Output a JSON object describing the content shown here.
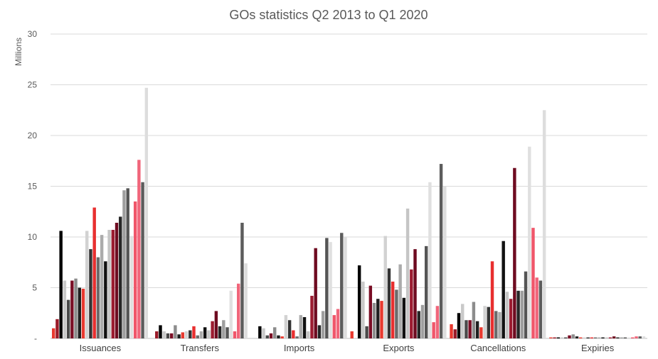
{
  "chart_data": {
    "type": "bar",
    "title": "GOs statistics Q2 2013 to Q1 2020",
    "ylabel": "Millions",
    "ylim": [
      0,
      30
    ],
    "yticks": [
      "-",
      "5",
      "10",
      "15",
      "20",
      "25",
      "30"
    ],
    "grid": true,
    "categories": [
      "Issuances",
      "Transfers",
      "Imports",
      "Exports",
      "Cancellations",
      "Expiries"
    ],
    "series_colors": [
      "#e8392f",
      "#9a1a28",
      "#000000",
      "#c9c9c9",
      "#4a4a4a",
      "#7a0e25",
      "#8c8c8c",
      "#1f1f1f",
      "#e8392f",
      "#d2d2d2",
      "#333333",
      "#e82f2f",
      "#6b6b6b",
      "#ababab",
      "#111111",
      "#c5c5c5",
      "#9b1b30",
      "#6e0b20",
      "#262626",
      "#9e9e9e",
      "#555555",
      "#e0e0e0",
      "#f0566a",
      "#f0657a",
      "#5c5c5c",
      "#dddddd"
    ],
    "series": [
      {
        "values": [
          1.0,
          0.0,
          0.0,
          0.7,
          1.4,
          0.1
        ]
      },
      {
        "values": [
          1.9,
          0.7,
          0.0,
          0.0,
          0.9,
          0.1
        ]
      },
      {
        "values": [
          10.6,
          1.3,
          1.2,
          7.2,
          2.5,
          0.1
        ]
      },
      {
        "values": [
          5.7,
          0.7,
          1.0,
          5.6,
          3.4,
          0.1
        ]
      },
      {
        "values": [
          3.8,
          0.5,
          0.3,
          1.2,
          1.8,
          0.1
        ]
      },
      {
        "values": [
          5.7,
          0.5,
          0.5,
          5.2,
          1.8,
          0.3
        ]
      },
      {
        "values": [
          5.9,
          1.3,
          1.1,
          3.5,
          3.6,
          0.4
        ]
      },
      {
        "values": [
          5.0,
          0.4,
          0.3,
          3.9,
          1.7,
          0.2
        ]
      },
      {
        "values": [
          4.9,
          0.6,
          0.2,
          3.7,
          1.1,
          0.1
        ]
      },
      {
        "values": [
          10.6,
          0.7,
          2.3,
          10.1,
          3.2,
          0.1
        ]
      },
      {
        "values": [
          8.8,
          0.8,
          1.8,
          6.9,
          3.1,
          0.1
        ]
      },
      {
        "values": [
          12.9,
          1.2,
          0.8,
          5.6,
          7.6,
          0.1
        ]
      },
      {
        "values": [
          8.0,
          0.3,
          0.2,
          4.8,
          2.7,
          0.1
        ]
      },
      {
        "values": [
          10.2,
          0.7,
          2.3,
          7.3,
          2.6,
          0.1
        ]
      },
      {
        "values": [
          7.6,
          1.1,
          2.1,
          4.0,
          9.6,
          0.1
        ]
      },
      {
        "values": [
          10.7,
          0.8,
          0.7,
          12.8,
          4.6,
          0.1
        ]
      },
      {
        "values": [
          10.7,
          1.7,
          4.2,
          6.8,
          3.9,
          0.1
        ]
      },
      {
        "values": [
          11.4,
          2.7,
          8.9,
          8.8,
          16.8,
          0.2
        ]
      },
      {
        "values": [
          12.0,
          1.2,
          1.3,
          2.7,
          4.7,
          0.1
        ]
      },
      {
        "values": [
          14.6,
          1.8,
          2.7,
          3.3,
          4.7,
          0.1
        ]
      },
      {
        "values": [
          14.8,
          1.1,
          9.9,
          9.1,
          6.6,
          0.1
        ]
      },
      {
        "values": [
          10.1,
          4.7,
          9.5,
          15.4,
          18.9,
          0.1
        ]
      },
      {
        "values": [
          13.5,
          0.7,
          2.3,
          1.6,
          10.9,
          0.1
        ]
      },
      {
        "values": [
          17.6,
          5.4,
          2.9,
          3.2,
          6.0,
          0.2
        ]
      },
      {
        "values": [
          15.4,
          11.4,
          10.4,
          17.2,
          5.7,
          0.2
        ]
      },
      {
        "values": [
          24.7,
          7.4,
          10.0,
          15.0,
          22.5,
          0.2
        ]
      }
    ]
  }
}
